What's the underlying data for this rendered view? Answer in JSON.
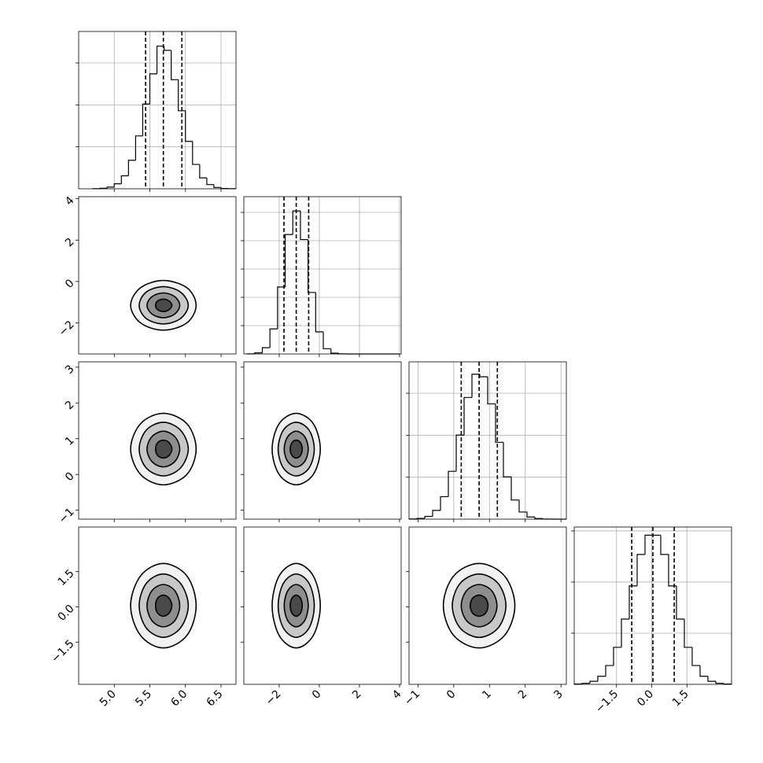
{
  "chart_data": [
    {
      "type": "histogram",
      "color": "#000000",
      "grid": true,
      "bins": [
        4.7,
        4.8,
        4.9,
        5.0,
        5.1,
        5.2,
        5.3,
        5.4,
        5.5,
        5.6,
        5.7,
        5.8,
        5.9,
        6.0,
        6.1,
        6.2,
        6.3,
        6.4,
        6.5,
        6.6,
        6.7
      ],
      "values": [
        1,
        6,
        20,
        60,
        155,
        340,
        630,
        1010,
        1370,
        1700,
        1650,
        1300,
        930,
        565,
        290,
        130,
        50,
        16,
        4,
        1
      ],
      "quantiles": [
        5.44,
        5.69,
        5.95
      ],
      "xlim": [
        4.5,
        6.71
      ],
      "xticks": [
        5.0,
        5.5,
        6.0,
        6.5
      ],
      "ylim": [
        0,
        1875
      ],
      "yticks": [
        500,
        1000,
        1500
      ]
    },
    {
      "type": "contour",
      "color": "#000000",
      "fill_colors": [
        "#f2f2f2",
        "#c8c8c8",
        "#8e8e8e",
        "#4a4a4a"
      ],
      "contours": [
        {
          "x": [
            6.15,
            6.02,
            5.69,
            5.37,
            5.23,
            5.37,
            5.69,
            6.02
          ],
          "y": [
            -1.15,
            -0.3,
            0.05,
            -0.3,
            -1.15,
            -2.0,
            -2.35,
            -2.0
          ]
        },
        {
          "x": [
            6.04,
            5.93,
            5.69,
            5.45,
            5.35,
            5.45,
            5.69,
            5.93
          ],
          "y": [
            -1.15,
            -0.51,
            -0.25,
            -0.51,
            -1.15,
            -1.79,
            -2.05,
            -1.79
          ]
        },
        {
          "x": [
            5.92,
            5.85,
            5.69,
            5.53,
            5.46,
            5.53,
            5.69,
            5.85
          ],
          "y": [
            -1.15,
            -0.73,
            -0.55,
            -0.73,
            -1.15,
            -1.57,
            -1.75,
            -1.57
          ]
        },
        {
          "x": [
            5.81,
            5.77,
            5.69,
            5.61,
            5.58,
            5.61,
            5.69,
            5.77
          ],
          "y": [
            -1.15,
            -0.94,
            -0.85,
            -0.94,
            -1.15,
            -1.36,
            -1.45,
            -1.36
          ]
        }
      ],
      "xlim": [
        4.5,
        6.71
      ],
      "xticks": [
        5.0,
        5.5,
        6.0,
        6.5
      ],
      "ylim": [
        -3.5,
        4.1
      ],
      "yticks": [
        {
          "value": -2,
          "label": "−2"
        },
        0,
        2,
        4
      ]
    },
    {
      "type": "histogram",
      "color": "#000000",
      "grid": true,
      "bins": [
        -3.6,
        -3.22,
        -2.84,
        -2.46,
        -2.08,
        -1.7,
        -1.32,
        -0.94,
        -0.56,
        -0.18,
        0.2,
        0.58,
        0.96,
        1.34,
        1.72,
        2.1,
        2.48,
        2.86,
        3.24,
        3.62,
        4.0
      ],
      "values": [
        2,
        19,
        111,
        443,
        1182,
        2110,
        2526,
        2020,
        1086,
        391,
        93,
        15,
        2,
        0,
        0,
        0,
        0,
        0,
        0,
        0
      ],
      "quantiles": [
        -1.76,
        -1.15,
        -0.53
      ],
      "xlim": [
        -3.76,
        4.08
      ],
      "xticks": [
        -2,
        0,
        2,
        4
      ],
      "ylim": [
        0,
        2778
      ],
      "yticks": [
        500,
        1000,
        1500,
        2000,
        2500
      ]
    },
    {
      "type": "contour",
      "color": "#000000",
      "fill_colors": [
        "#f2f2f2",
        "#c8c8c8",
        "#8e8e8e",
        "#4a4a4a"
      ],
      "contours": [
        {
          "x": [
            6.15,
            6.02,
            5.69,
            5.37,
            5.23,
            5.37,
            5.69,
            6.02
          ],
          "y": [
            0.71,
            1.42,
            1.71,
            1.42,
            0.71,
            0.0,
            -0.29,
            0.0
          ]
        },
        {
          "x": [
            6.04,
            5.93,
            5.69,
            5.45,
            5.35,
            5.45,
            5.69,
            5.93
          ],
          "y": [
            0.71,
            1.24,
            1.46,
            1.24,
            0.71,
            0.18,
            -0.04,
            0.18
          ]
        },
        {
          "x": [
            5.92,
            5.85,
            5.69,
            5.53,
            5.46,
            5.53,
            5.69,
            5.85
          ],
          "y": [
            0.71,
            1.06,
            1.21,
            1.06,
            0.71,
            0.36,
            0.21,
            0.36
          ]
        },
        {
          "x": [
            5.81,
            5.77,
            5.69,
            5.61,
            5.58,
            5.61,
            5.69,
            5.77
          ],
          "y": [
            0.71,
            0.89,
            0.96,
            0.89,
            0.71,
            0.53,
            0.46,
            0.53
          ]
        }
      ],
      "xlim": [
        4.5,
        6.71
      ],
      "xticks": [
        5.0,
        5.5,
        6.0,
        6.5
      ],
      "ylim": [
        -1.25,
        3.15
      ],
      "yticks": [
        {
          "value": -1,
          "label": "−1"
        },
        0,
        1,
        2,
        3
      ]
    },
    {
      "type": "contour",
      "color": "#000000",
      "fill_colors": [
        "#f2f2f2",
        "#c8c8c8",
        "#8e8e8e",
        "#4a4a4a"
      ],
      "contours": [
        {
          "x": [
            0.05,
            -0.3,
            -1.15,
            -2.0,
            -2.35,
            -2.0,
            -1.15,
            -0.3
          ],
          "y": [
            0.71,
            1.42,
            1.71,
            1.42,
            0.71,
            0.0,
            -0.29,
            0.0
          ]
        },
        {
          "x": [
            -0.25,
            -0.51,
            -1.15,
            -1.79,
            -2.05,
            -1.79,
            -1.15,
            -0.51
          ],
          "y": [
            0.71,
            1.24,
            1.46,
            1.24,
            0.71,
            0.18,
            -0.04,
            0.18
          ]
        },
        {
          "x": [
            -0.55,
            -0.73,
            -1.15,
            -1.57,
            -1.75,
            -1.57,
            -1.15,
            -0.73
          ],
          "y": [
            0.71,
            1.06,
            1.21,
            1.06,
            0.71,
            0.36,
            0.21,
            0.36
          ]
        },
        {
          "x": [
            -0.85,
            -0.94,
            -1.15,
            -1.36,
            -1.45,
            -1.36,
            -1.15,
            -0.94
          ],
          "y": [
            0.71,
            0.89,
            0.96,
            0.89,
            0.71,
            0.53,
            0.46,
            0.53
          ]
        }
      ],
      "xlim": [
        -3.76,
        4.08
      ],
      "xticks": [
        -2,
        0,
        2,
        4
      ],
      "ylim": [
        -1.25,
        3.15
      ],
      "yticks": [
        -1,
        0,
        1,
        2,
        3
      ]
    },
    {
      "type": "histogram",
      "color": "#000000",
      "grid": true,
      "bins": [
        -1.25,
        -1.03,
        -0.81,
        -0.59,
        -0.37,
        -0.15,
        0.07,
        0.29,
        0.51,
        0.73,
        0.95,
        1.17,
        1.39,
        1.61,
        1.83,
        2.05,
        2.27,
        2.49,
        2.71,
        2.93,
        3.15
      ],
      "values": [
        2,
        9,
        33,
        104,
        268,
        570,
        1002,
        1450,
        1727,
        1697,
        1374,
        916,
        504,
        228,
        85,
        26,
        7,
        1,
        0,
        0
      ],
      "quantiles": [
        0.21,
        0.71,
        1.22
      ],
      "xlim": [
        -1.25,
        3.15
      ],
      "xticks": [
        -1,
        0,
        1,
        2,
        3
      ],
      "ylim": [
        0,
        1875
      ],
      "yticks": [
        500,
        1000,
        1500
      ]
    },
    {
      "type": "contour",
      "color": "#000000",
      "fill_colors": [
        "#f2f2f2",
        "#c8c8c8",
        "#8e8e8e",
        "#4a4a4a"
      ],
      "contours": [
        {
          "x": [
            6.15,
            6.02,
            5.69,
            5.37,
            5.23,
            5.37,
            5.69,
            6.02
          ],
          "y": [
            0.05,
            1.32,
            1.85,
            1.32,
            0.05,
            -1.22,
            -1.75,
            -1.22
          ]
        },
        {
          "x": [
            6.04,
            5.93,
            5.69,
            5.45,
            5.35,
            5.45,
            5.69,
            5.93
          ],
          "y": [
            0.05,
            1.0,
            1.4,
            1.0,
            0.05,
            -0.9,
            -1.3,
            -0.9
          ]
        },
        {
          "x": [
            5.92,
            5.85,
            5.69,
            5.53,
            5.46,
            5.53,
            5.69,
            5.85
          ],
          "y": [
            0.05,
            0.69,
            0.95,
            0.69,
            0.05,
            -0.59,
            -0.85,
            -0.59
          ]
        },
        {
          "x": [
            5.81,
            5.77,
            5.69,
            5.61,
            5.58,
            5.61,
            5.69,
            5.77
          ],
          "y": [
            0.05,
            0.37,
            0.5,
            0.37,
            0.05,
            -0.27,
            -0.4,
            -0.27
          ]
        }
      ],
      "xlim": [
        4.5,
        6.71
      ],
      "xticks": [
        {
          "value": 5.0,
          "label": "5.0"
        },
        {
          "value": 5.5,
          "label": "5.5"
        },
        {
          "value": 6.0,
          "label": "6.0"
        },
        {
          "value": 6.5,
          "label": "6.5"
        }
      ],
      "ylim": [
        -3.3,
        3.4
      ],
      "yticks": [
        {
          "value": -1.5,
          "label": "−1.5"
        },
        {
          "value": 0,
          "label": "0.0"
        },
        {
          "value": 1.5,
          "label": "1.5"
        }
      ]
    },
    {
      "type": "contour",
      "color": "#000000",
      "fill_colors": [
        "#f2f2f2",
        "#c8c8c8",
        "#8e8e8e",
        "#4a4a4a"
      ],
      "contours": [
        {
          "x": [
            0.05,
            -0.3,
            -1.15,
            -2.0,
            -2.35,
            -2.0,
            -1.15,
            -0.3
          ],
          "y": [
            0.05,
            1.32,
            1.85,
            1.32,
            0.05,
            -1.22,
            -1.75,
            -1.22
          ]
        },
        {
          "x": [
            -0.25,
            -0.51,
            -1.15,
            -1.79,
            -2.05,
            -1.79,
            -1.15,
            -0.51
          ],
          "y": [
            0.05,
            1.0,
            1.4,
            1.0,
            0.05,
            -0.9,
            -1.3,
            -0.9
          ]
        },
        {
          "x": [
            -0.55,
            -0.73,
            -1.15,
            -1.57,
            -1.75,
            -1.57,
            -1.15,
            -0.73
          ],
          "y": [
            0.05,
            0.69,
            0.95,
            0.69,
            0.05,
            -0.59,
            -0.85,
            -0.59
          ]
        },
        {
          "x": [
            -0.85,
            -0.94,
            -1.15,
            -1.36,
            -1.45,
            -1.36,
            -1.15,
            -0.94
          ],
          "y": [
            0.05,
            0.37,
            0.5,
            0.37,
            0.05,
            -0.27,
            -0.4,
            -0.27
          ]
        }
      ],
      "xlim": [
        -3.76,
        4.08
      ],
      "xticks": [
        {
          "value": -2,
          "label": "−2"
        },
        0,
        2,
        4
      ],
      "ylim": [
        -3.3,
        3.4
      ],
      "yticks": [
        -1.5,
        0,
        1.5
      ]
    },
    {
      "type": "contour",
      "color": "#000000",
      "fill_colors": [
        "#f2f2f2",
        "#c8c8c8",
        "#8e8e8e",
        "#4a4a4a"
      ],
      "contours": [
        {
          "x": [
            1.71,
            1.42,
            0.71,
            0.0,
            -0.29,
            0.0,
            0.71,
            1.42
          ],
          "y": [
            0.05,
            1.32,
            1.85,
            1.32,
            0.05,
            -1.22,
            -1.75,
            -1.22
          ]
        },
        {
          "x": [
            1.46,
            1.24,
            0.71,
            0.18,
            -0.04,
            0.18,
            0.71,
            1.24
          ],
          "y": [
            0.05,
            1.0,
            1.4,
            1.0,
            0.05,
            -0.9,
            -1.3,
            -0.9
          ]
        },
        {
          "x": [
            1.21,
            1.06,
            0.71,
            0.36,
            0.21,
            0.36,
            0.71,
            1.06
          ],
          "y": [
            0.05,
            0.69,
            0.95,
            0.69,
            0.05,
            -0.59,
            -0.85,
            -0.59
          ]
        },
        {
          "x": [
            0.96,
            0.89,
            0.71,
            0.53,
            0.46,
            0.53,
            0.71,
            0.89
          ],
          "y": [
            0.05,
            0.37,
            0.5,
            0.37,
            0.05,
            -0.27,
            -0.4,
            -0.27
          ]
        }
      ],
      "xlim": [
        -1.25,
        3.15
      ],
      "xticks": [
        {
          "value": -1,
          "label": "−1"
        },
        0,
        1,
        2,
        3
      ],
      "ylim": [
        -3.3,
        3.4
      ],
      "yticks": [
        -1.5,
        0,
        1.5
      ]
    },
    {
      "type": "histogram",
      "color": "#000000",
      "grid": true,
      "bins": [
        -3.3,
        -2.965,
        -2.63,
        -2.295,
        -1.96,
        -1.625,
        -1.29,
        -0.955,
        -0.62,
        -0.285,
        0.05,
        0.385,
        0.72,
        1.055,
        1.39,
        1.725,
        2.06,
        2.395,
        2.73,
        3.065,
        3.4
      ],
      "values": [
        3,
        10,
        30,
        79,
        184,
        362,
        638,
        962,
        1270,
        1458,
        1458,
        1270,
        962,
        638,
        362,
        184,
        79,
        30,
        10,
        3
      ],
      "quantiles": [
        -0.85,
        0.05,
        0.96
      ],
      "xlim": [
        -3.3,
        3.4
      ],
      "xticks": [
        {
          "value": -1.5,
          "label": "−1.5"
        },
        {
          "value": 0,
          "label": "0.0"
        },
        {
          "value": 1.5,
          "label": "1.5"
        }
      ],
      "ylim": [
        0,
        1538
      ],
      "yticks": [
        500,
        1000,
        1500
      ]
    }
  ]
}
